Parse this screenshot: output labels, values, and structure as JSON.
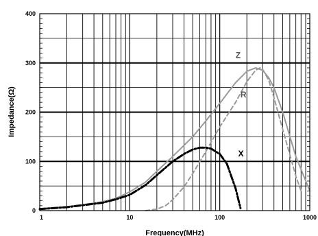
{
  "chart_data": {
    "type": "line",
    "title": "",
    "xlabel": "Frequency(MHz)",
    "ylabel": "Impedance(Ω)",
    "x_scale": "log",
    "xlim": [
      1,
      1000
    ],
    "ylim": [
      0,
      400
    ],
    "x_ticks": [
      "1",
      "10",
      "100",
      "1000"
    ],
    "y_ticks": [
      "0",
      "100",
      "200",
      "300",
      "400"
    ],
    "grid": true,
    "series": [
      {
        "name": "Z",
        "color": "#9a9a9a",
        "dash": "solid",
        "x": [
          1,
          2,
          3,
          5,
          7,
          10,
          15,
          20,
          30,
          50,
          70,
          100,
          150,
          200,
          250,
          300,
          350,
          400,
          500,
          700,
          1000
        ],
        "y": [
          4,
          8,
          12,
          18,
          25,
          38,
          58,
          80,
          110,
          150,
          182,
          218,
          260,
          283,
          290,
          285,
          270,
          250,
          200,
          110,
          40
        ]
      },
      {
        "name": "R",
        "color": "#9a9a9a",
        "dash": "dashed",
        "x": [
          15,
          20,
          25,
          30,
          40,
          50,
          70,
          100,
          150,
          200,
          250,
          280,
          300,
          350,
          400,
          500,
          700,
          800
        ],
        "y": [
          0,
          3,
          10,
          22,
          48,
          75,
          120,
          170,
          220,
          262,
          285,
          290,
          287,
          265,
          230,
          165,
          70,
          40
        ]
      },
      {
        "name": "X",
        "color": "#000000",
        "dash": "dash-dot",
        "x": [
          1,
          2,
          3,
          5,
          7,
          10,
          15,
          20,
          30,
          40,
          50,
          60,
          70,
          80,
          100,
          120,
          150,
          170
        ],
        "y": [
          3,
          7,
          11,
          16,
          23,
          32,
          52,
          72,
          100,
          115,
          124,
          128,
          128,
          126,
          115,
          95,
          45,
          5
        ]
      }
    ],
    "annotations": [
      "Z",
      "R",
      "X"
    ]
  }
}
